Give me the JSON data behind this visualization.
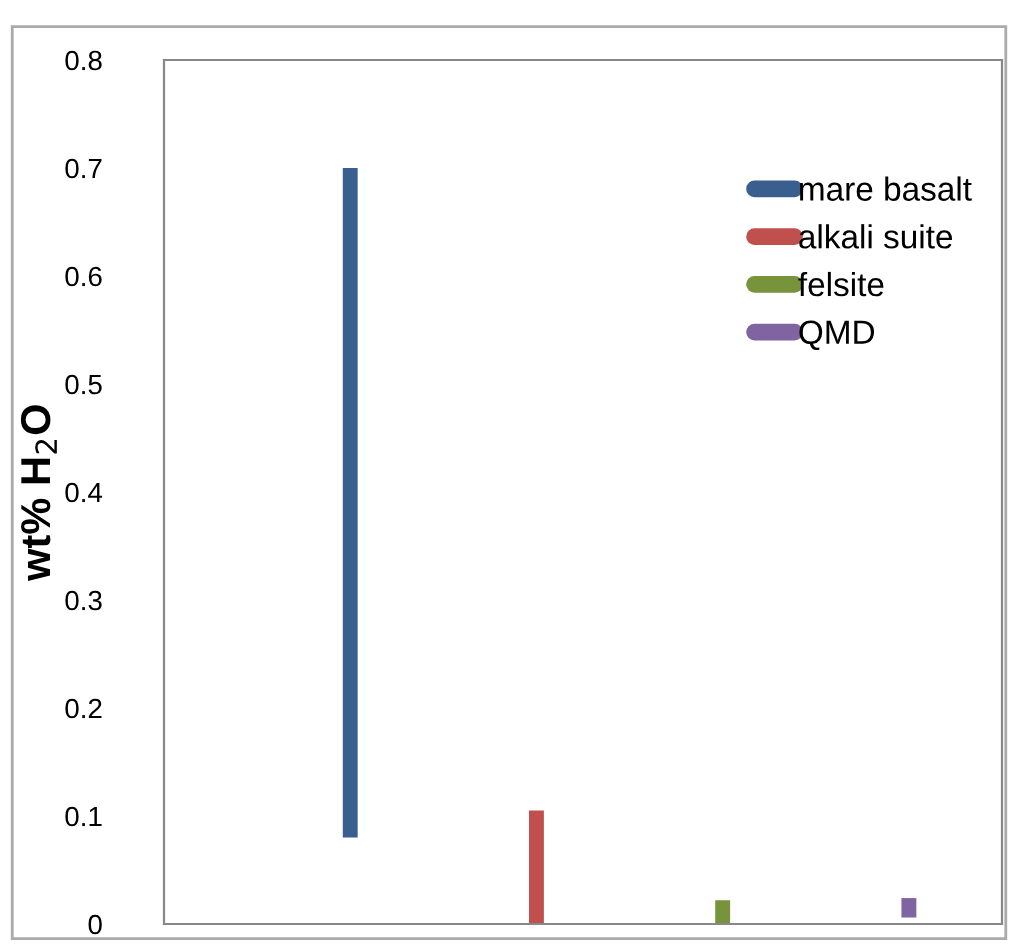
{
  "chart_data": {
    "type": "bar",
    "ylabel": "wt% H$_{2}$O",
    "categories": [
      null,
      null,
      null,
      null,
      null
    ],
    "series": [
      {
        "name": "mare basalt",
        "color": "#3a5f8f",
        "values": [
          null,
          0.62,
          null,
          null,
          null
        ],
        "base": [
          null,
          0.08,
          null,
          null,
          null
        ]
      },
      {
        "name": "alkali suite",
        "color": "#c0504d",
        "values": [
          null,
          null,
          0.105,
          null,
          null
        ],
        "base": [
          null,
          null,
          0,
          null,
          null
        ]
      },
      {
        "name": "felsite",
        "color": "#77933c",
        "values": [
          null,
          null,
          null,
          0.022,
          null
        ],
        "base": [
          null,
          null,
          null,
          0,
          null
        ]
      },
      {
        "name": "QMD",
        "color": "#8064a2",
        "values": [
          null,
          null,
          null,
          null,
          0.018
        ],
        "base": [
          null,
          null,
          null,
          null,
          0.006
        ]
      }
    ],
    "ylim": [
      0,
      0.8
    ],
    "yticks": [
      {
        "value": 0,
        "label": "0"
      },
      0.1,
      0.2,
      0.3,
      0.4,
      0.5,
      0.6,
      0.7,
      0.8
    ],
    "legend": "top right",
    "tick_labels": "y",
    "grid": false
  }
}
